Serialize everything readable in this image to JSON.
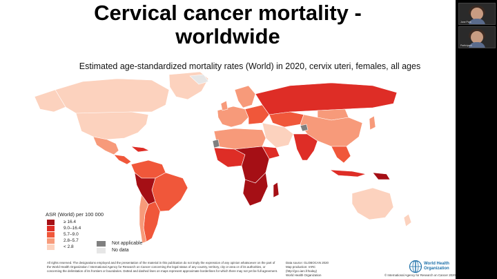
{
  "slide": {
    "title_line1": "Cervical cancer mortality -",
    "title_line2": "worldwide",
    "subtitle": "Estimated age-standardized mortality rates (World) in 2020, cervix uteri, females, all ages"
  },
  "legend": {
    "title": "ASR (World) per 100 000",
    "classes": [
      {
        "label": "≥ 16.4",
        "color": "#a50f15"
      },
      {
        "label": "9.0–16.4",
        "color": "#de2d26"
      },
      {
        "label": "5.7–9.0",
        "color": "#f0573a"
      },
      {
        "label": "2.8–5.7",
        "color": "#f79a7a"
      },
      {
        "label": "< 2.8",
        "color": "#fcd2be"
      }
    ],
    "not_applicable": "Not applicable",
    "no_data": "No data",
    "not_applicable_color": "#7f7f7f",
    "no_data_color": "#e6e6e6"
  },
  "footer": {
    "disclaimer": "All rights reserved. The designations employed and the presentation of the material in this publication do not imply the expression of any opinion whatsoever on the part of the World Health Organization / International Agency for Research on Cancer concerning the legal status of any country, territory, city or area or of its authorities, or concerning the delimitation of its frontiers or boundaries. Dotted and dashed lines on maps represent approximate borderlines for which there may not yet be full agreement.",
    "source_line1": "Data source: GLOBOCAN 2020",
    "source_line2": "Map production: IARC",
    "source_line3": "(http://gco.iarc.fr/today)",
    "source_line4": "World Health Organization",
    "who_name_line1": "World Health",
    "who_name_line2": "Organization",
    "copyright": "© International Agency for Research on Cancer 2020"
  },
  "video_tiles": [
    {
      "name": "Jane Park"
    },
    {
      "name": "Participant"
    }
  ]
}
